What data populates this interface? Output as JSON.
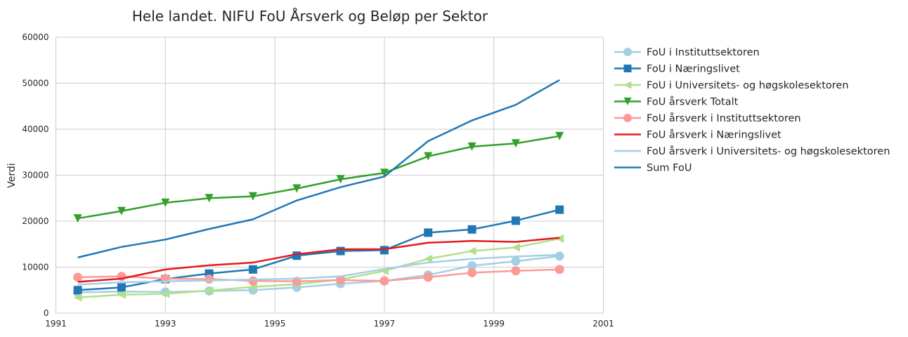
{
  "chart_data": {
    "type": "line",
    "title": "Hele landet. NIFU FoU Årsverk og Beløp per Sektor",
    "xlabel": "",
    "ylabel": "Verdi",
    "xlim": [
      1991,
      2001
    ],
    "ylim": [
      0,
      60000
    ],
    "xticks": [
      "1991",
      "1993",
      "1995",
      "1997",
      "1999",
      "2001"
    ],
    "yticks": [
      "0",
      "10000",
      "20000",
      "30000",
      "40000",
      "50000",
      "60000"
    ],
    "grid": true,
    "legend_position": "outside-right",
    "x": [
      1991.4,
      1992.2,
      1993.0,
      1993.8,
      1994.6,
      1995.4,
      1996.2,
      1997.0,
      1997.8,
      1998.6,
      1999.4,
      2000.2
    ],
    "series": [
      {
        "name": "FoU i Instituttsektoren",
        "color": "#a6cee3",
        "marker": "circle",
        "values": [
          4500,
          4700,
          4600,
          4800,
          5000,
          5600,
          6400,
          7000,
          8300,
          10300,
          11300,
          12400
        ]
      },
      {
        "name": "FoU i Næringslivet",
        "color": "#1f78b4",
        "marker": "square",
        "values": [
          5000,
          5600,
          7400,
          8600,
          9500,
          12500,
          13500,
          13700,
          17500,
          18200,
          20100,
          22500
        ]
      },
      {
        "name": "FoU i Universitets- og høgskolesektoren",
        "color": "#b2df8a",
        "marker": "triangle-left",
        "values": [
          3400,
          4000,
          4200,
          4900,
          5700,
          6300,
          7300,
          9200,
          11800,
          13500,
          14300,
          16200
        ]
      },
      {
        "name": "FoU årsverk Totalt",
        "color": "#33a02c",
        "marker": "triangle-down",
        "values": [
          20600,
          22200,
          24000,
          25000,
          25400,
          27100,
          29100,
          30500,
          34100,
          36200,
          36900,
          38500
        ]
      },
      {
        "name": "FoU årsverk i Instituttsektoren",
        "color": "#fb9a99",
        "marker": "circle",
        "values": [
          7800,
          8000,
          7500,
          7400,
          7000,
          6900,
          7200,
          7000,
          7800,
          8800,
          9200,
          9500
        ]
      },
      {
        "name": "FoU årsverk i Næringslivet",
        "color": "#e31a1c",
        "marker": "none",
        "values": [
          6800,
          7500,
          9500,
          10400,
          11000,
          12800,
          13900,
          13900,
          15300,
          15700,
          15500,
          16400
        ]
      },
      {
        "name": "FoU årsverk i Universitets- og høgskolesektoren",
        "color": "#a6cee3",
        "marker": "none",
        "values": [
          6200,
          6700,
          6900,
          7100,
          7300,
          7500,
          8000,
          9600,
          11000,
          11800,
          12300,
          12700
        ]
      },
      {
        "name": "Sum FoU",
        "color": "#1f78b4",
        "marker": "none",
        "values": [
          12100,
          14400,
          16000,
          18300,
          20400,
          24500,
          27400,
          29700,
          37400,
          41900,
          45300,
          50700
        ]
      }
    ]
  }
}
